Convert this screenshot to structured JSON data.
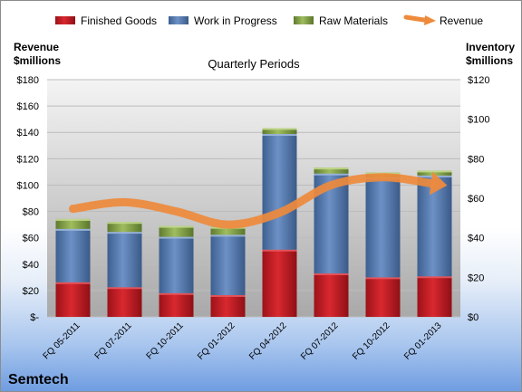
{
  "chart_data": {
    "type": "bar",
    "title": "Quarterly Periods",
    "company": "Semtech",
    "left_axis_label": [
      "Revenue",
      "$millions"
    ],
    "right_axis_label": [
      "Inventory",
      "$millions"
    ],
    "categories": [
      "FQ 05-2011",
      "FQ 07-2011",
      "FQ 10-2011",
      "FQ 01-2012",
      "FQ 04-2012",
      "FQ 07-2012",
      "FQ 10-2012",
      "FQ 01-2013"
    ],
    "stacked": true,
    "series": [
      {
        "name": "Finished Goods",
        "color": "#c8202a",
        "axis": "right",
        "values": [
          17.5,
          15,
          12,
          11,
          34,
          22,
          20,
          20.5
        ]
      },
      {
        "name": "Work in Progress",
        "color": "#5b80b7",
        "axis": "right",
        "values": [
          27,
          28,
          28.5,
          30.5,
          58.5,
          50.5,
          50.5,
          51
        ]
      },
      {
        "name": "Raw Materials",
        "color": "#8dab50",
        "axis": "right",
        "values": [
          5,
          5,
          5.5,
          4,
          3,
          3,
          2.5,
          2.5
        ]
      }
    ],
    "line_series": {
      "name": "Revenue",
      "color": "#ee8a3c",
      "axis": "left",
      "values": [
        82,
        87,
        80,
        70,
        79,
        100,
        106,
        101
      ]
    },
    "left_axis": {
      "min": 0,
      "max": 180,
      "step": 20,
      "ticks": [
        "$-",
        "$20",
        "$40",
        "$60",
        "$80",
        "$100",
        "$120",
        "$140",
        "$160",
        "$180"
      ]
    },
    "right_axis": {
      "min": 0,
      "max": 120,
      "step": 20,
      "ticks": [
        "$0",
        "$20",
        "$40",
        "$60",
        "$80",
        "$100",
        "$120"
      ]
    },
    "grid": true,
    "legend_position": "top"
  }
}
